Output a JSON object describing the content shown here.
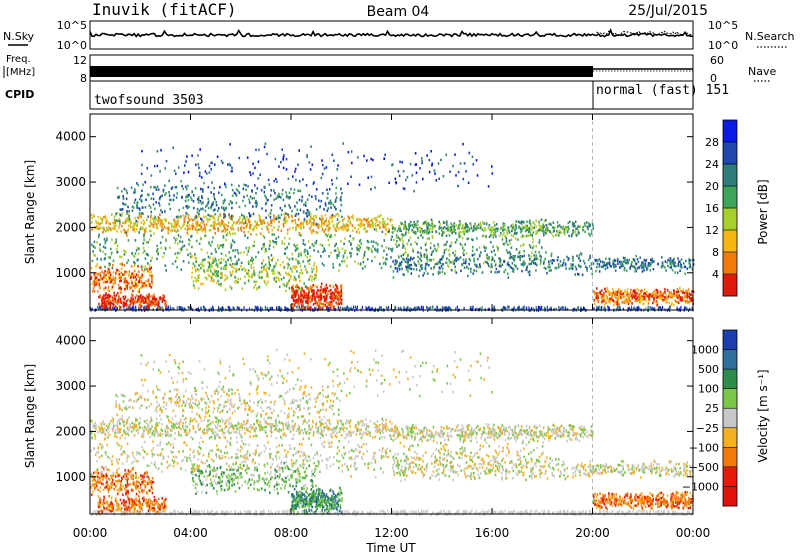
{
  "header": {
    "station": "Inuvik (fitACF)",
    "beam": "Beam 04",
    "date": "25/Jul/2015"
  },
  "strips": {
    "nsky": {
      "label": "N.Sky",
      "ticks": [
        "10^5",
        "10^0"
      ]
    },
    "nsearch": {
      "label": "N.Search",
      "ticks": [
        "10^5",
        "10^0"
      ]
    },
    "freq": {
      "label_line1": "Freq.",
      "label_line2": "[MHz]",
      "ticks": [
        "12",
        "8"
      ]
    },
    "nave": {
      "label": "Nave",
      "ticks": [
        "60",
        "0"
      ]
    },
    "cpid": {
      "label": "CPID",
      "segments": [
        "twofsound 3503",
        "normal (fast) 151"
      ]
    }
  },
  "chart_data": [
    {
      "type": "heatmap",
      "panel": "power",
      "ylabel": "Slant Range [km]",
      "ylim": [
        180,
        4500
      ],
      "yticks": [
        "1000",
        "2000",
        "3000",
        "4000"
      ],
      "xlim_hours": [
        0,
        24
      ],
      "mode_change_hour": 20,
      "colorbar": {
        "label": "Power [dB]",
        "ticks": [
          "4",
          "8",
          "12",
          "16",
          "20",
          "24",
          "28"
        ],
        "colors": [
          "#0a1ae6",
          "#1f49ae",
          "#2f7c7a",
          "#3da45a",
          "#a8d02a",
          "#f5b80e",
          "#f07a0a",
          "#e01a0a"
        ]
      }
    },
    {
      "type": "heatmap",
      "panel": "velocity",
      "ylabel": "Slant Range [km]",
      "ylim": [
        180,
        4500
      ],
      "yticks": [
        "1000",
        "2000",
        "3000",
        "4000"
      ],
      "xlim_hours": [
        0,
        24
      ],
      "mode_change_hour": 20,
      "colorbar": {
        "label": "Velocity [m s⁻¹]",
        "ticks": [
          "1000",
          "500",
          "100",
          "25",
          "−25",
          "−100",
          "−500",
          "−1000"
        ],
        "colors": [
          "#1c3fae",
          "#2f6f9e",
          "#2e8c4a",
          "#7ac84a",
          "#c8c8c8",
          "#f5b020",
          "#f07a0a",
          "#e61a0a",
          "#e0100a"
        ]
      }
    }
  ],
  "xaxis": {
    "label": "Time UT",
    "ticks": [
      "00:00",
      "04:00",
      "08:00",
      "12:00",
      "16:00",
      "20:00",
      "00:00"
    ]
  }
}
